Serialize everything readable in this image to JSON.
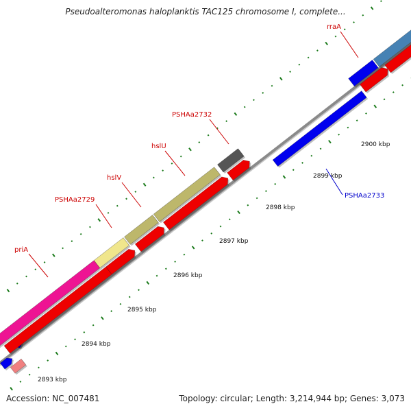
{
  "title": "Pseudoalteromonas haloplanktis TAC125 chromosome I, complete...",
  "footer": {
    "accession": "Accession: NC_007481",
    "stats": "Topology: circular; Length: 3,214,944 bp; Genes: 3,073"
  },
  "colors": {
    "backbone": "#8a8a8a",
    "tick_major": "#1a7a1a",
    "tick_minor": "#1a7a1a",
    "label_red": "#cc0000",
    "label_blue": "#0000cc"
  },
  "kbp_labels": [
    "2893 kbp",
    "2894 kbp",
    "2895 kbp",
    "2896 kbp",
    "2897 kbp",
    "2898 kbp",
    "2899 kbp",
    "2900 kbp"
  ],
  "features": [
    {
      "id": "pink-partial",
      "label": "",
      "strand": "+",
      "color": "#f08080"
    },
    {
      "id": "blue-small",
      "label": "",
      "strand": "+",
      "color": "#0000ee"
    },
    {
      "id": "blue-tiny",
      "label": "",
      "strand": "-",
      "color": "#0000ee"
    },
    {
      "id": "priA-cds",
      "label": "",
      "strand": "+",
      "color": "#ee0000"
    },
    {
      "id": "priA-gene",
      "label": "priA",
      "strand": "+",
      "color": "#ee1493"
    },
    {
      "id": "PSHAa2729-cds",
      "label": "",
      "strand": "+",
      "color": "#ee0000"
    },
    {
      "id": "PSHAa2729-gene",
      "label": "PSHAa2729",
      "strand": "+",
      "color": "#f0e68c"
    },
    {
      "id": "hslV-cds",
      "label": "",
      "strand": "+",
      "color": "#ee0000"
    },
    {
      "id": "hslV-gene",
      "label": "hslV",
      "strand": "+",
      "color": "#bdb76b"
    },
    {
      "id": "hslU-cds",
      "label": "",
      "strand": "+",
      "color": "#ee0000"
    },
    {
      "id": "hslU-gene",
      "label": "hslU",
      "strand": "+",
      "color": "#bdb76b"
    },
    {
      "id": "PSHAa2732-cds",
      "label": "",
      "strand": "+",
      "color": "#ee0000"
    },
    {
      "id": "PSHAa2732-gene",
      "label": "PSHAa2732",
      "strand": "+",
      "color": "#555555"
    },
    {
      "id": "PSHAa2733-gene",
      "label": "PSHAa2733",
      "strand": "-",
      "color": "#0000ee"
    },
    {
      "id": "rraA-cds",
      "label": "",
      "strand": "+",
      "color": "#ee0000"
    },
    {
      "id": "rraA-gene",
      "label": "rraA",
      "strand": "+",
      "color": "#0000ee"
    },
    {
      "id": "next-cds",
      "label": "",
      "strand": "+",
      "color": "#ee0000"
    },
    {
      "id": "next-gene",
      "label": "",
      "strand": "+",
      "color": "#4682b4"
    }
  ]
}
